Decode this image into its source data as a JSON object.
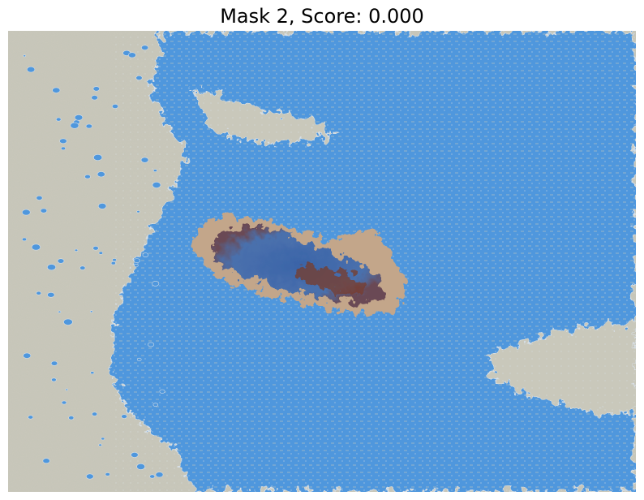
{
  "figure": {
    "title": "Mask 2, Score: 0.000"
  },
  "colors": {
    "surface": "#c9c8bb",
    "mask": "#4f97dd",
    "mask_deep": "#3d83cf",
    "mask_outline": "#d7dfe6",
    "stain_dark": "#7a3b2a",
    "stain_rim": "#c3a68a",
    "stain_core": "#476fb0"
  }
}
